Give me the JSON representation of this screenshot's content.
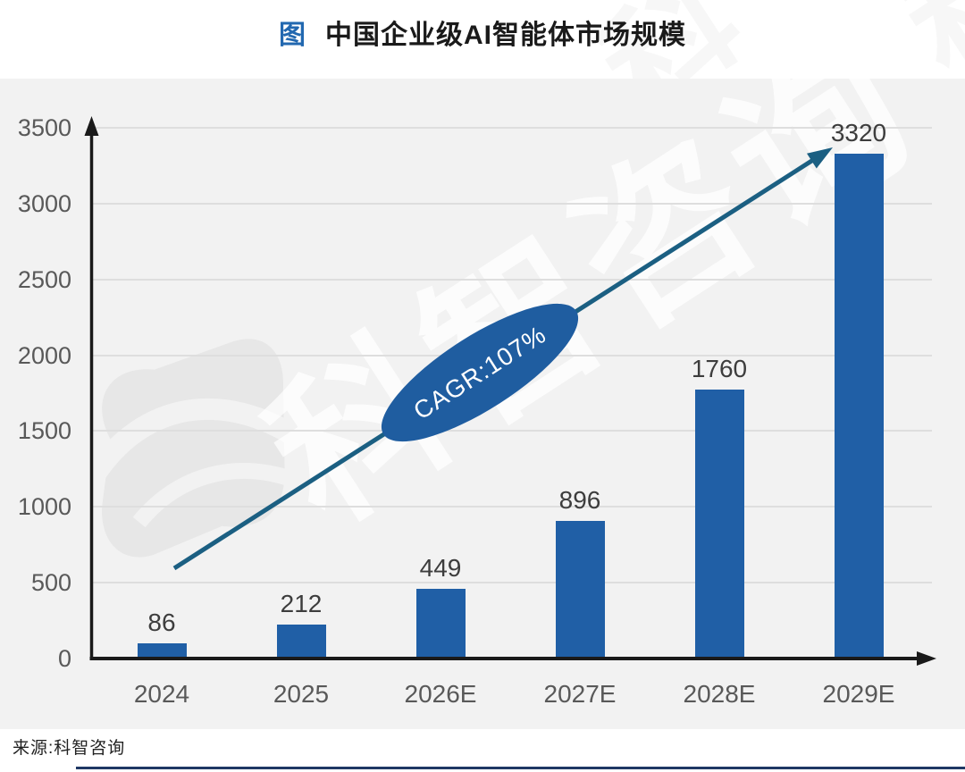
{
  "title": {
    "icon_label": "图",
    "text": "中国企业级AI智能体市场规模"
  },
  "source": "来源:科智咨询",
  "watermark": {
    "text": "科智咨询"
  },
  "chart_data": {
    "type": "bar",
    "title": "中国企业级AI智能体市场规模",
    "categories": [
      "2024",
      "2025",
      "2026E",
      "2027E",
      "2028E",
      "2029E"
    ],
    "values": [
      86,
      212,
      449,
      896,
      1760,
      3320
    ],
    "xlabel": "",
    "ylabel": "",
    "ylim": [
      0,
      3500
    ],
    "yticks": [
      0,
      500,
      1000,
      1500,
      2000,
      2500,
      3000,
      3500
    ],
    "grid": true,
    "legend": "none",
    "annotation": {
      "type": "trend-arrow",
      "label": "CAGR:107%"
    },
    "colors": {
      "bar": "#205FA6",
      "ellipse": "#1F5DA0",
      "trend_line": "#1B5F82",
      "title_accent": "#2268B0",
      "panel_background": "#f2f2f2",
      "axis": "#1a1a1a",
      "tick_text": "#595959"
    }
  }
}
